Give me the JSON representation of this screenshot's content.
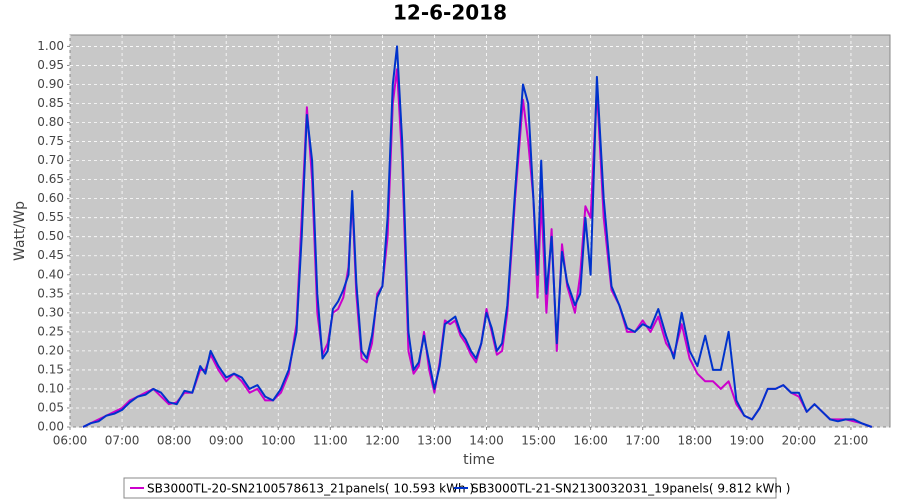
{
  "chart_data": {
    "type": "line",
    "title": "12-6-2018",
    "xlabel": "time",
    "ylabel": "Watt/Wp",
    "x": [
      6.25,
      6.4,
      6.55,
      6.7,
      6.85,
      7.0,
      7.15,
      7.3,
      7.45,
      7.6,
      7.75,
      7.9,
      8.05,
      8.2,
      8.35,
      8.5,
      8.6,
      8.7,
      8.85,
      9.0,
      9.15,
      9.3,
      9.45,
      9.6,
      9.75,
      9.9,
      10.05,
      10.2,
      10.35,
      10.45,
      10.55,
      10.65,
      10.75,
      10.85,
      10.95,
      11.05,
      11.15,
      11.25,
      11.35,
      11.42,
      11.5,
      11.6,
      11.7,
      11.8,
      11.9,
      12.0,
      12.1,
      12.2,
      12.28,
      12.38,
      12.5,
      12.6,
      12.7,
      12.8,
      12.9,
      13.0,
      13.1,
      13.2,
      13.3,
      13.4,
      13.5,
      13.6,
      13.7,
      13.8,
      13.9,
      14.0,
      14.1,
      14.2,
      14.3,
      14.4,
      14.55,
      14.7,
      14.8,
      14.9,
      14.98,
      15.05,
      15.15,
      15.25,
      15.35,
      15.45,
      15.55,
      15.7,
      15.8,
      15.9,
      16.0,
      16.12,
      16.25,
      16.4,
      16.55,
      16.7,
      16.85,
      17.0,
      17.15,
      17.3,
      17.45,
      17.6,
      17.75,
      17.9,
      18.05,
      18.2,
      18.35,
      18.5,
      18.65,
      18.8,
      18.95,
      19.1,
      19.25,
      19.4,
      19.55,
      19.7,
      19.85,
      20.0,
      20.15,
      20.3,
      20.45,
      20.6,
      20.75,
      20.9,
      21.05,
      21.2,
      21.4
    ],
    "series": [
      {
        "name": "SB3000TL-20-SN2100578613_21panels( 10.593 kWh )",
        "color": "#cc00cc",
        "values": [
          0,
          0.01,
          0.02,
          0.03,
          0.04,
          0.05,
          0.07,
          0.08,
          0.09,
          0.1,
          0.08,
          0.06,
          0.065,
          0.09,
          0.09,
          0.15,
          0.15,
          0.19,
          0.15,
          0.12,
          0.14,
          0.12,
          0.09,
          0.1,
          0.07,
          0.07,
          0.09,
          0.14,
          0.27,
          0.55,
          0.84,
          0.65,
          0.3,
          0.19,
          0.22,
          0.3,
          0.31,
          0.34,
          0.42,
          0.6,
          0.35,
          0.18,
          0.17,
          0.22,
          0.35,
          0.37,
          0.5,
          0.85,
          0.94,
          0.7,
          0.2,
          0.14,
          0.16,
          0.25,
          0.15,
          0.09,
          0.17,
          0.28,
          0.27,
          0.28,
          0.24,
          0.22,
          0.19,
          0.17,
          0.22,
          0.31,
          0.25,
          0.19,
          0.2,
          0.3,
          0.6,
          0.86,
          0.75,
          0.6,
          0.34,
          0.6,
          0.3,
          0.52,
          0.2,
          0.48,
          0.37,
          0.3,
          0.4,
          0.58,
          0.55,
          0.89,
          0.55,
          0.36,
          0.32,
          0.25,
          0.25,
          0.28,
          0.25,
          0.29,
          0.22,
          0.19,
          0.27,
          0.18,
          0.14,
          0.12,
          0.12,
          0.1,
          0.12,
          0.06,
          0.03,
          0.02,
          0.05,
          0.1,
          0.1,
          0.11,
          0.09,
          0.08,
          0.04,
          0.06,
          0.04,
          0.02,
          0.02,
          0.02,
          0.015,
          0.01,
          0
        ]
      },
      {
        "name": "SB3000TL-21-SN2130032031_19panels( 9.812 kWh )",
        "color": "#0033cc",
        "values": [
          0,
          0.01,
          0.015,
          0.03,
          0.035,
          0.045,
          0.065,
          0.08,
          0.085,
          0.1,
          0.09,
          0.065,
          0.06,
          0.095,
          0.09,
          0.16,
          0.14,
          0.2,
          0.16,
          0.13,
          0.14,
          0.13,
          0.1,
          0.11,
          0.08,
          0.07,
          0.1,
          0.15,
          0.25,
          0.5,
          0.82,
          0.7,
          0.35,
          0.18,
          0.2,
          0.31,
          0.33,
          0.36,
          0.4,
          0.62,
          0.38,
          0.2,
          0.18,
          0.24,
          0.34,
          0.37,
          0.55,
          0.9,
          1.0,
          0.75,
          0.25,
          0.15,
          0.17,
          0.24,
          0.17,
          0.1,
          0.16,
          0.27,
          0.28,
          0.29,
          0.25,
          0.23,
          0.2,
          0.18,
          0.22,
          0.3,
          0.26,
          0.2,
          0.22,
          0.32,
          0.62,
          0.9,
          0.85,
          0.6,
          0.4,
          0.7,
          0.35,
          0.5,
          0.22,
          0.46,
          0.38,
          0.32,
          0.35,
          0.55,
          0.4,
          0.92,
          0.6,
          0.37,
          0.32,
          0.26,
          0.25,
          0.27,
          0.26,
          0.31,
          0.24,
          0.18,
          0.3,
          0.2,
          0.16,
          0.24,
          0.15,
          0.15,
          0.25,
          0.07,
          0.03,
          0.02,
          0.05,
          0.1,
          0.1,
          0.11,
          0.09,
          0.09,
          0.04,
          0.06,
          0.04,
          0.02,
          0.015,
          0.02,
          0.02,
          0.01,
          0
        ]
      }
    ],
    "xlim": [
      6.0,
      21.75
    ],
    "xticks": [
      {
        "value": 6,
        "label": "06:00"
      },
      {
        "value": 7,
        "label": "07:00"
      },
      {
        "value": 8,
        "label": "08:00"
      },
      {
        "value": 9,
        "label": "09:00"
      },
      {
        "value": 10,
        "label": "10:00"
      },
      {
        "value": 11,
        "label": "11:00"
      },
      {
        "value": 12,
        "label": "12:00"
      },
      {
        "value": 13,
        "label": "13:00"
      },
      {
        "value": 14,
        "label": "14:00"
      },
      {
        "value": 15,
        "label": "15:00"
      },
      {
        "value": 16,
        "label": "16:00"
      },
      {
        "value": 17,
        "label": "17:00"
      },
      {
        "value": 18,
        "label": "18:00"
      },
      {
        "value": 19,
        "label": "19:00"
      },
      {
        "value": 20,
        "label": "20:00"
      },
      {
        "value": 21,
        "label": "21:00"
      }
    ],
    "ylim": [
      0,
      1.03
    ],
    "yticks": [
      {
        "value": 0,
        "label": "0.00"
      },
      {
        "value": 0.05,
        "label": "0.05"
      },
      {
        "value": 0.1,
        "label": "0.10"
      },
      {
        "value": 0.15,
        "label": "0.15"
      },
      {
        "value": 0.2,
        "label": "0.20"
      },
      {
        "value": 0.25,
        "label": "0.25"
      },
      {
        "value": 0.3,
        "label": "0.30"
      },
      {
        "value": 0.35,
        "label": "0.35"
      },
      {
        "value": 0.4,
        "label": "0.40"
      },
      {
        "value": 0.45,
        "label": "0.45"
      },
      {
        "value": 0.5,
        "label": "0.50"
      },
      {
        "value": 0.55,
        "label": "0.55"
      },
      {
        "value": 0.6,
        "label": "0.60"
      },
      {
        "value": 0.65,
        "label": "0.65"
      },
      {
        "value": 0.7,
        "label": "0.70"
      },
      {
        "value": 0.75,
        "label": "0.75"
      },
      {
        "value": 0.8,
        "label": "0.80"
      },
      {
        "value": 0.85,
        "label": "0.85"
      },
      {
        "value": 0.9,
        "label": "0.90"
      },
      {
        "value": 0.95,
        "label": "0.95"
      },
      {
        "value": 1.0,
        "label": "1.00"
      }
    ],
    "grid": true,
    "legend": "bottom"
  }
}
